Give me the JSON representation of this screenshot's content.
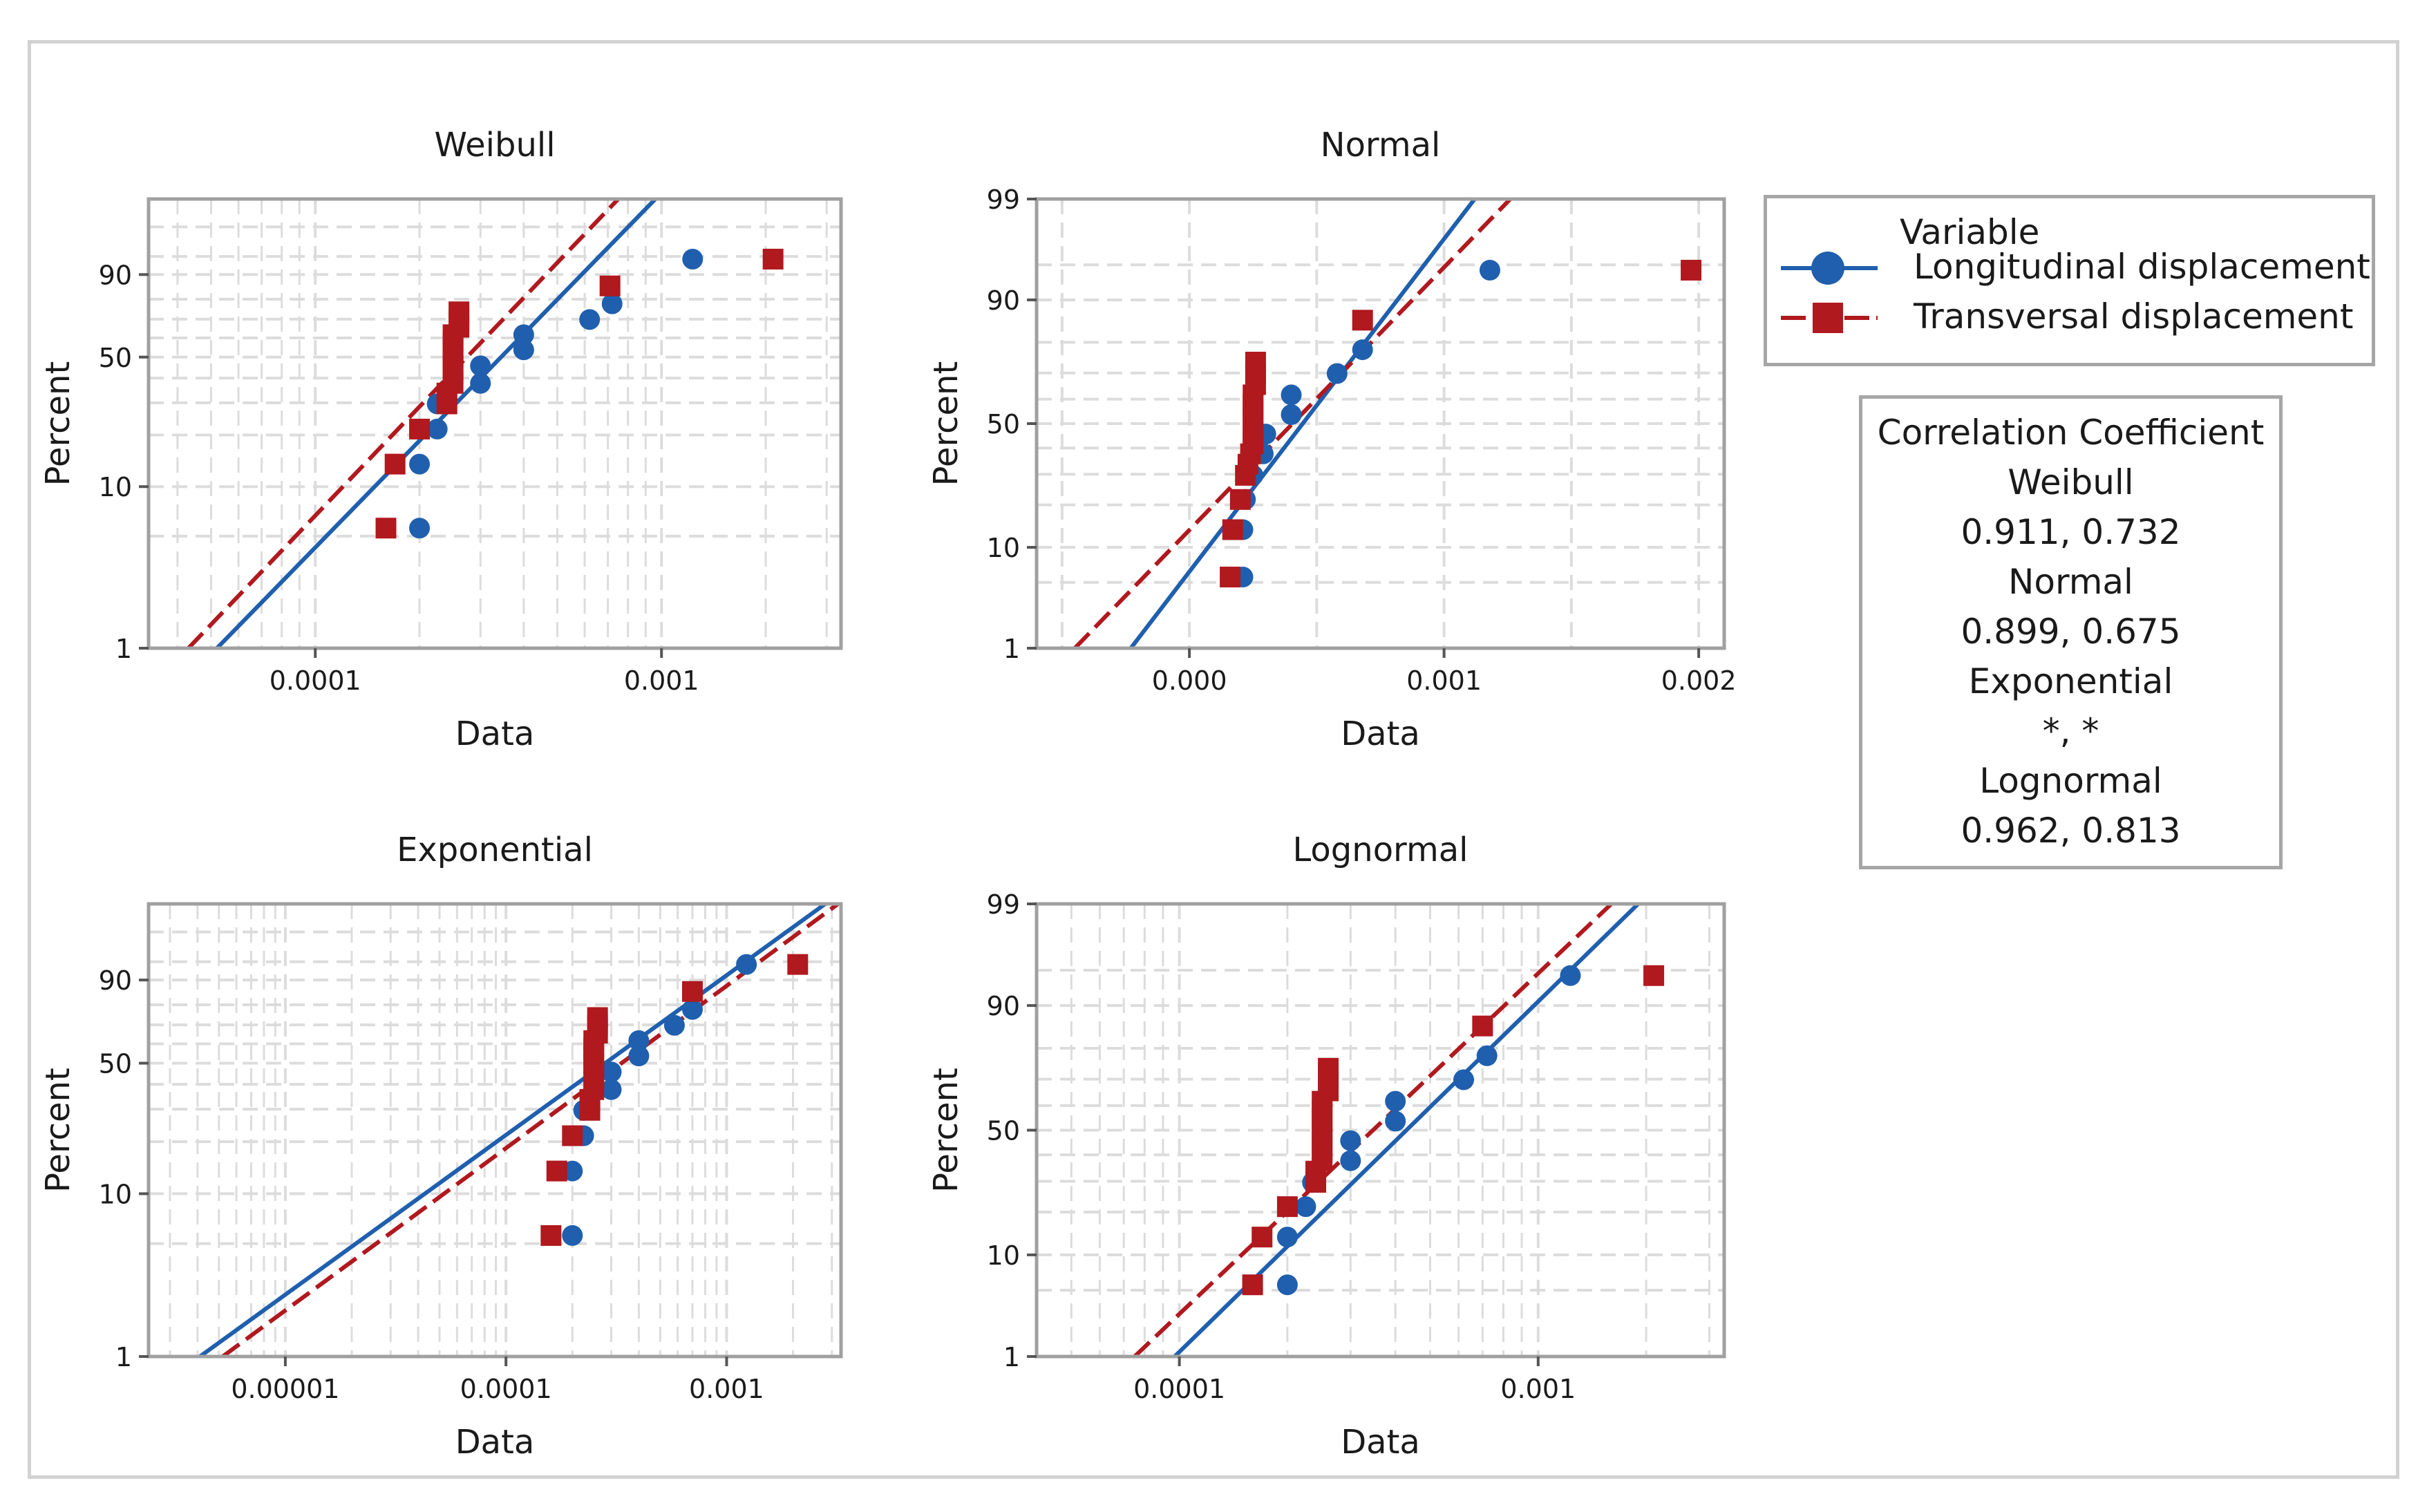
{
  "colors": {
    "series1": "#1f5fae",
    "series2": "#b0191e",
    "grid": "#dcdcdc",
    "axis": "#a0a0a0",
    "text": "#1a1a1a"
  },
  "legend": {
    "title": "Variable",
    "items": [
      {
        "label": "Longitudinal displacement",
        "marker": "circle",
        "line": "solid"
      },
      {
        "label": "Transversal displacement",
        "marker": "square",
        "line": "dashed"
      }
    ]
  },
  "correlation": {
    "title": "Correlation Coefficient",
    "lines": [
      {
        "label": "Weibull",
        "value": "0.911, 0.732"
      },
      {
        "label": "Normal",
        "value": "0.899, 0.675"
      },
      {
        "label": "Exponential",
        "value": "*, *"
      },
      {
        "label": "Lognormal",
        "value": "0.962, 0.813"
      }
    ]
  },
  "chart_data": [
    {
      "type": "scatter",
      "title": "Weibull",
      "xlabel": "Data",
      "ylabel": "Percent",
      "xscale": "log",
      "xlim": [
        3.3e-05,
        0.0033
      ],
      "ylim": [
        1,
        99.9
      ],
      "xticks": [
        {
          "v": 0.0001,
          "label": "0.0001"
        },
        {
          "v": 0.001,
          "label": "0.001"
        }
      ],
      "yticks": [
        {
          "v": 1,
          "label": "1"
        },
        {
          "v": 10,
          "label": "10"
        },
        {
          "v": 50,
          "label": "50"
        },
        {
          "v": 90,
          "label": "90"
        }
      ],
      "series": [
        {
          "name": "Longitudinal displacement",
          "points": [
            [
              0.0002,
              5.6
            ],
            [
              0.0002,
              13.6
            ],
            [
              0.000225,
              21.6
            ],
            [
              0.000225,
              29.6
            ],
            [
              0.0003,
              37.7
            ],
            [
              0.0003,
              45.7
            ],
            [
              0.0004,
              53.7
            ],
            [
              0.0004,
              61.7
            ],
            [
              0.00062,
              69.8
            ],
            [
              0.00072,
              77.8
            ],
            [
              0.00123,
              94.4
            ]
          ],
          "fit": [
            [
              5.2e-05,
              1
            ],
            [
              0.00096,
              99.9
            ]
          ]
        },
        {
          "name": "Transversal displacement",
          "points": [
            [
              0.00016,
              5.6
            ],
            [
              0.00017,
              13.6
            ],
            [
              0.0002,
              21.6
            ],
            [
              0.00024,
              29.6
            ],
            [
              0.00024,
              33.7
            ],
            [
              0.00025,
              37.7
            ],
            [
              0.00025,
              41.7
            ],
            [
              0.00025,
              45.7
            ],
            [
              0.00025,
              49.7
            ],
            [
              0.00025,
              53.7
            ],
            [
              0.00025,
              57.7
            ],
            [
              0.00025,
              61.7
            ],
            [
              0.00026,
              65.7
            ],
            [
              0.00026,
              69.8
            ],
            [
              0.00026,
              73.8
            ],
            [
              0.00071,
              85.8
            ],
            [
              0.0021,
              94.4
            ]
          ],
          "fit": [
            [
              4.3e-05,
              1
            ],
            [
              0.00075,
              99.9
            ]
          ]
        }
      ]
    },
    {
      "type": "scatter",
      "title": "Normal",
      "xlabel": "Data",
      "ylabel": "Percent",
      "xscale": "linear",
      "xlim": [
        -0.0006,
        0.0021
      ],
      "ylim": [
        1,
        99
      ],
      "xticks": [
        {
          "v": 0,
          "label": "0.000"
        },
        {
          "v": 0.001,
          "label": "0.001"
        },
        {
          "v": 0.002,
          "label": "0.002"
        }
      ],
      "yticks": [
        {
          "v": 1,
          "label": "1"
        },
        {
          "v": 10,
          "label": "10"
        },
        {
          "v": 50,
          "label": "50"
        },
        {
          "v": 90,
          "label": "90"
        },
        {
          "v": 99,
          "label": "99"
        }
      ],
      "series": [
        {
          "name": "Longitudinal displacement",
          "points": [
            [
              0.00021,
              5.6
            ],
            [
              0.00021,
              13.6
            ],
            [
              0.00022,
              21.6
            ],
            [
              0.00025,
              29.6
            ],
            [
              0.00029,
              37.7
            ],
            [
              0.0003,
              45.7
            ],
            [
              0.0004,
              53.7
            ],
            [
              0.0004,
              61.7
            ],
            [
              0.00058,
              69.8
            ],
            [
              0.00068,
              77.8
            ],
            [
              0.00118,
              94.4
            ]
          ],
          "fit": [
            [
              -0.00023,
              1
            ],
            [
              0.00112,
              99
            ]
          ]
        },
        {
          "name": "Transversal displacement",
          "points": [
            [
              0.00016,
              5.6
            ],
            [
              0.00017,
              13.6
            ],
            [
              0.0002,
              21.6
            ],
            [
              0.00022,
              29.6
            ],
            [
              0.00023,
              33.7
            ],
            [
              0.00024,
              37.7
            ],
            [
              0.00025,
              41.7
            ],
            [
              0.00025,
              45.7
            ],
            [
              0.00025,
              49.7
            ],
            [
              0.00025,
              53.7
            ],
            [
              0.00025,
              57.7
            ],
            [
              0.00025,
              61.7
            ],
            [
              0.00026,
              65.7
            ],
            [
              0.00026,
              69.8
            ],
            [
              0.00026,
              73.8
            ],
            [
              0.00068,
              85.8
            ],
            [
              0.00197,
              94.4
            ]
          ],
          "fit": [
            [
              -0.00045,
              1
            ],
            [
              0.00126,
              99
            ]
          ]
        }
      ]
    },
    {
      "type": "scatter",
      "title": "Exponential",
      "xlabel": "Data",
      "ylabel": "Percent",
      "xscale": "log",
      "xlim": [
        2.4e-06,
        0.0033
      ],
      "ylim": [
        1,
        99.9
      ],
      "xticks": [
        {
          "v": 1e-05,
          "label": "0.00001"
        },
        {
          "v": 0.0001,
          "label": "0.0001"
        },
        {
          "v": 0.001,
          "label": "0.001"
        }
      ],
      "yticks": [
        {
          "v": 1,
          "label": "1"
        },
        {
          "v": 10,
          "label": "10"
        },
        {
          "v": 50,
          "label": "50"
        },
        {
          "v": 90,
          "label": "90"
        }
      ],
      "series": [
        {
          "name": "Longitudinal displacement",
          "points": [
            [
              0.0002,
              5.6
            ],
            [
              0.0002,
              13.6
            ],
            [
              0.000225,
              21.6
            ],
            [
              0.000225,
              29.6
            ],
            [
              0.0003,
              37.7
            ],
            [
              0.0003,
              45.7
            ],
            [
              0.0004,
              53.7
            ],
            [
              0.0004,
              61.7
            ],
            [
              0.00058,
              69.8
            ],
            [
              0.0007,
              77.8
            ],
            [
              0.00123,
              94.4
            ]
          ],
          "fit": [
            [
              4.1e-06,
              1
            ],
            [
              0.0028,
              99.9
            ]
          ]
        },
        {
          "name": "Transversal displacement",
          "points": [
            [
              0.00016,
              5.6
            ],
            [
              0.00017,
              13.6
            ],
            [
              0.0002,
              21.6
            ],
            [
              0.00024,
              29.6
            ],
            [
              0.00024,
              33.7
            ],
            [
              0.00025,
              37.7
            ],
            [
              0.00025,
              41.7
            ],
            [
              0.00025,
              45.7
            ],
            [
              0.00025,
              49.7
            ],
            [
              0.00025,
              53.7
            ],
            [
              0.00025,
              57.7
            ],
            [
              0.00025,
              61.7
            ],
            [
              0.00026,
              65.7
            ],
            [
              0.00026,
              69.8
            ],
            [
              0.00026,
              73.8
            ],
            [
              0.0007,
              85.8
            ],
            [
              0.0021,
              94.4
            ]
          ],
          "fit": [
            [
              5.2e-06,
              1
            ],
            [
              0.0032,
              99.9
            ]
          ]
        }
      ]
    },
    {
      "type": "scatter",
      "title": "Lognormal",
      "xlabel": "Data",
      "ylabel": "Percent",
      "xscale": "log",
      "xlim": [
        4e-05,
        0.0033
      ],
      "ylim": [
        1,
        99
      ],
      "xticks": [
        {
          "v": 0.0001,
          "label": "0.0001"
        },
        {
          "v": 0.001,
          "label": "0.001"
        }
      ],
      "yticks": [
        {
          "v": 1,
          "label": "1"
        },
        {
          "v": 10,
          "label": "10"
        },
        {
          "v": 50,
          "label": "50"
        },
        {
          "v": 90,
          "label": "90"
        },
        {
          "v": 99,
          "label": "99"
        }
      ],
      "series": [
        {
          "name": "Longitudinal displacement",
          "points": [
            [
              0.0002,
              5.6
            ],
            [
              0.0002,
              13.6
            ],
            [
              0.000225,
              21.6
            ],
            [
              0.000235,
              29.6
            ],
            [
              0.0003,
              37.7
            ],
            [
              0.0003,
              45.7
            ],
            [
              0.0004,
              53.7
            ],
            [
              0.0004,
              61.7
            ],
            [
              0.00062,
              69.8
            ],
            [
              0.00072,
              77.8
            ],
            [
              0.00123,
              94.4
            ]
          ],
          "fit": [
            [
              9.7e-05,
              1
            ],
            [
              0.0019,
              99
            ]
          ]
        },
        {
          "name": "Transversal displacement",
          "points": [
            [
              0.00016,
              5.6
            ],
            [
              0.00017,
              13.6
            ],
            [
              0.0002,
              21.6
            ],
            [
              0.00024,
              29.6
            ],
            [
              0.00024,
              33.7
            ],
            [
              0.00025,
              37.7
            ],
            [
              0.00025,
              41.7
            ],
            [
              0.00025,
              45.7
            ],
            [
              0.00025,
              49.7
            ],
            [
              0.00025,
              53.7
            ],
            [
              0.00025,
              57.7
            ],
            [
              0.00025,
              61.7
            ],
            [
              0.00026,
              65.7
            ],
            [
              0.00026,
              69.8
            ],
            [
              0.00026,
              73.8
            ],
            [
              0.0007,
              85.8
            ],
            [
              0.0021,
              94.4
            ]
          ],
          "fit": [
            [
              7.5e-05,
              1
            ],
            [
              0.0016,
              99
            ]
          ]
        }
      ]
    }
  ]
}
